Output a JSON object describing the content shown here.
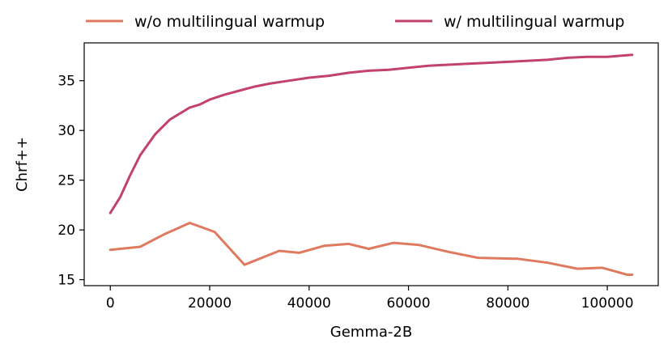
{
  "chart_data": {
    "type": "line",
    "xlabel": "Gemma-2B",
    "ylabel": "Chrf++",
    "xlim": [
      -5250,
      110250
    ],
    "ylim": [
      14.4,
      38.8
    ],
    "x_ticks": [
      0,
      20000,
      40000,
      60000,
      80000,
      100000
    ],
    "x_tick_labels": [
      "0",
      "20000",
      "40000",
      "60000",
      "80000",
      "100000"
    ],
    "y_ticks": [
      15,
      20,
      25,
      30,
      35
    ],
    "y_tick_labels": [
      "15",
      "20",
      "25",
      "30",
      "35"
    ],
    "grid": false,
    "legend_position": "top-outside",
    "series": [
      {
        "name": "w/o multilingual warmup",
        "color": "#e07a5f",
        "x": [
          0,
          6000,
          11000,
          16000,
          21000,
          27000,
          34000,
          38000,
          43000,
          48000,
          52000,
          57000,
          62000,
          68000,
          74000,
          82000,
          88000,
          94000,
          99000,
          104000,
          105000
        ],
        "y": [
          18.0,
          18.3,
          19.6,
          20.7,
          19.8,
          16.5,
          17.9,
          17.7,
          18.4,
          18.6,
          18.1,
          18.7,
          18.5,
          17.8,
          17.2,
          17.1,
          16.7,
          16.1,
          16.2,
          15.5,
          15.5
        ]
      },
      {
        "name": "w/ multilingual warmup",
        "color": "#c2426a",
        "x": [
          0,
          2000,
          4000,
          6000,
          9000,
          12000,
          16000,
          18000,
          20000,
          23000,
          26000,
          29000,
          32000,
          36000,
          40000,
          44000,
          48000,
          52000,
          56000,
          60000,
          64000,
          68000,
          72000,
          76000,
          80000,
          84000,
          88000,
          92000,
          96000,
          100000,
          105000
        ],
        "y": [
          21.7,
          23.3,
          25.5,
          27.5,
          29.6,
          31.1,
          32.3,
          32.6,
          33.1,
          33.6,
          34.0,
          34.4,
          34.7,
          35.0,
          35.3,
          35.5,
          35.8,
          36.0,
          36.1,
          36.3,
          36.5,
          36.6,
          36.7,
          36.8,
          36.9,
          37.0,
          37.1,
          37.3,
          37.4,
          37.4,
          37.6
        ]
      }
    ]
  }
}
